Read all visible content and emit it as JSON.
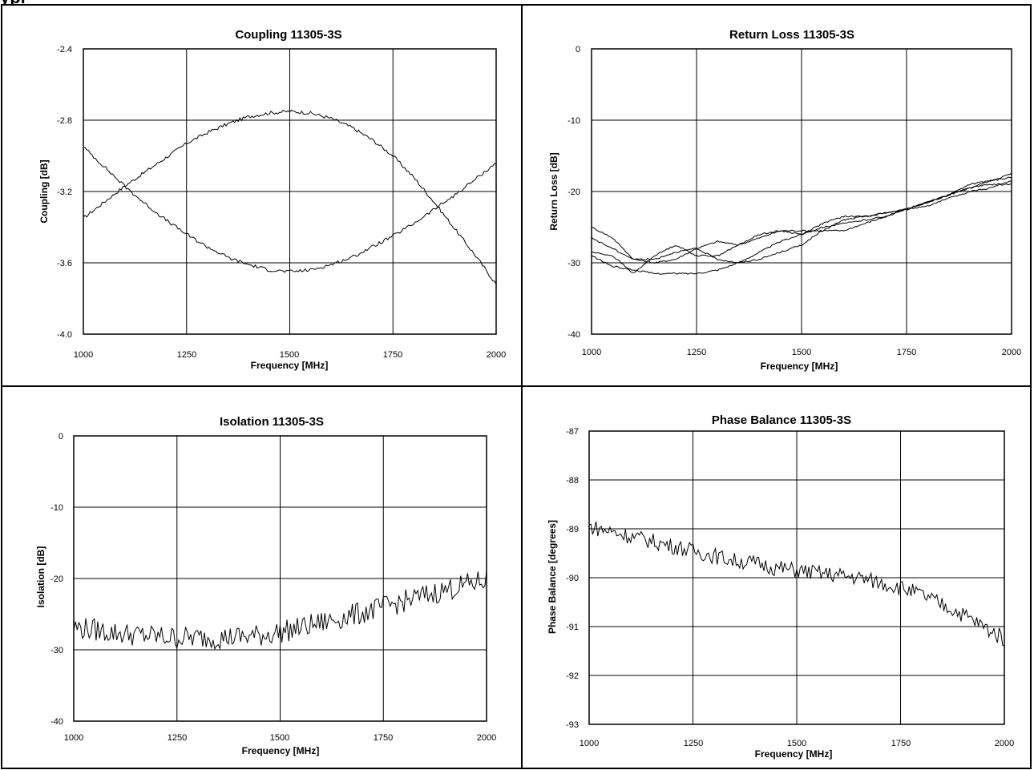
{
  "page": {
    "fragment_text": "ypi"
  },
  "charts": [
    {
      "title": "Coupling 11305-3S",
      "xlabel": "Frequency [MHz]",
      "ylabel": "Coupling [dB]",
      "xticks": [
        "1000",
        "1250",
        "1500",
        "1750",
        "2000"
      ],
      "yticks": [
        "-2.4",
        "-2.8",
        "-3.2",
        "-3.6",
        "-4.0"
      ]
    },
    {
      "title": "Return Loss 11305-3S",
      "xlabel": "Frequency [MHz]",
      "ylabel": "Return Loss [dB]",
      "xticks": [
        "1000",
        "1250",
        "1500",
        "1750",
        "2000"
      ],
      "yticks": [
        "0",
        "-10",
        "-20",
        "-30",
        "-40"
      ]
    },
    {
      "title": "Isolation 11305-3S",
      "xlabel": "Frequency [MHz]",
      "ylabel": "Isolation [dB]",
      "xticks": [
        "1000",
        "1250",
        "1500",
        "1750",
        "2000"
      ],
      "yticks": [
        "0",
        "-10",
        "-20",
        "-30",
        "-40"
      ]
    },
    {
      "title": "Phase Balance 11305-3S",
      "xlabel": "Frequency [MHz]",
      "ylabel": "Phase  Balance [degrees]",
      "xticks": [
        "1000",
        "1250",
        "1500",
        "1750",
        "2000"
      ],
      "yticks": [
        "-87",
        "-88",
        "-89",
        "-90",
        "-91",
        "-92",
        "-93"
      ]
    }
  ],
  "chart_data": [
    {
      "type": "line",
      "title": "Coupling 11305-3S",
      "xlabel": "Frequency [MHz]",
      "ylabel": "Coupling [dB]",
      "xlim": [
        1000,
        2000
      ],
      "ylim": [
        -4.0,
        -2.4
      ],
      "grid": true,
      "series": [
        {
          "x": [
            1000,
            1050,
            1100,
            1150,
            1200,
            1250,
            1300,
            1350,
            1400,
            1450,
            1500,
            1550,
            1600,
            1650,
            1700,
            1750,
            1800,
            1850,
            1900,
            1950,
            2000
          ],
          "y": [
            -3.35,
            -3.26,
            -3.17,
            -3.09,
            -3.01,
            -2.93,
            -2.87,
            -2.82,
            -2.78,
            -2.76,
            -2.75,
            -2.76,
            -2.79,
            -2.84,
            -2.91,
            -3.0,
            -3.12,
            -3.26,
            -3.41,
            -3.56,
            -3.72
          ]
        },
        {
          "x": [
            1000,
            1050,
            1100,
            1150,
            1200,
            1250,
            1300,
            1350,
            1400,
            1450,
            1500,
            1550,
            1600,
            1650,
            1700,
            1750,
            1800,
            1850,
            1900,
            1950,
            2000
          ],
          "y": [
            -2.95,
            -3.06,
            -3.17,
            -3.27,
            -3.36,
            -3.44,
            -3.51,
            -3.57,
            -3.61,
            -3.64,
            -3.65,
            -3.64,
            -3.61,
            -3.57,
            -3.51,
            -3.45,
            -3.38,
            -3.3,
            -3.22,
            -3.13,
            -3.04
          ]
        }
      ]
    },
    {
      "type": "line",
      "title": "Return Loss 11305-3S",
      "xlabel": "Frequency [MHz]",
      "ylabel": "Return Loss [dB]",
      "xlim": [
        1000,
        2000
      ],
      "ylim": [
        -40,
        0
      ],
      "grid": true,
      "series": [
        {
          "x": [
            1000,
            1050,
            1100,
            1150,
            1200,
            1250,
            1300,
            1350,
            1400,
            1450,
            1500,
            1550,
            1600,
            1650,
            1700,
            1750,
            1800,
            1850,
            1900,
            1950,
            2000
          ],
          "y": [
            -25,
            -26.5,
            -29.5,
            -30,
            -29.5,
            -28,
            -27,
            -27.5,
            -26.5,
            -25.5,
            -25.5,
            -25.5,
            -25.5,
            -24.5,
            -23.5,
            -22.5,
            -21.5,
            -20.5,
            -19.5,
            -18.5,
            -17.5
          ]
        },
        {
          "x": [
            1000,
            1050,
            1100,
            1150,
            1200,
            1250,
            1300,
            1350,
            1400,
            1450,
            1500,
            1550,
            1600,
            1650,
            1700,
            1750,
            1800,
            1850,
            1900,
            1950,
            2000
          ],
          "y": [
            -28.5,
            -29,
            -31.5,
            -29,
            -27.5,
            -29,
            -29,
            -27.5,
            -26,
            -25.5,
            -26,
            -24.5,
            -23.5,
            -23.5,
            -23,
            -22.5,
            -21.5,
            -20.5,
            -19,
            -18.5,
            -18
          ]
        },
        {
          "x": [
            1000,
            1050,
            1100,
            1150,
            1200,
            1250,
            1300,
            1350,
            1400,
            1450,
            1500,
            1550,
            1600,
            1650,
            1700,
            1750,
            1800,
            1850,
            1900,
            1950,
            2000
          ],
          "y": [
            -29,
            -30.5,
            -31,
            -31.5,
            -31.5,
            -31.5,
            -31,
            -30,
            -28.5,
            -27,
            -26,
            -25,
            -24.5,
            -24,
            -23.5,
            -22.5,
            -21.5,
            -20.5,
            -19.5,
            -19,
            -19
          ]
        },
        {
          "x": [
            1000,
            1050,
            1100,
            1150,
            1200,
            1250,
            1300,
            1350,
            1400,
            1450,
            1500,
            1550,
            1600,
            1650,
            1700,
            1750,
            1800,
            1850,
            1900,
            1950,
            2000
          ],
          "y": [
            -26.5,
            -28,
            -29.5,
            -29.5,
            -28.5,
            -28,
            -29.5,
            -30,
            -29.5,
            -28.5,
            -27.5,
            -25.5,
            -24,
            -23.5,
            -23,
            -22.5,
            -22,
            -21,
            -20,
            -19.5,
            -18.5
          ]
        }
      ]
    },
    {
      "type": "line",
      "title": "Isolation 11305-3S",
      "xlabel": "Frequency [MHz]",
      "ylabel": "Isolation [dB]",
      "xlim": [
        1000,
        2000
      ],
      "ylim": [
        -40,
        0
      ],
      "grid": true,
      "series": [
        {
          "x": [
            1000,
            1050,
            1100,
            1150,
            1200,
            1250,
            1300,
            1350,
            1400,
            1450,
            1500,
            1550,
            1600,
            1650,
            1700,
            1750,
            1800,
            1850,
            1900,
            1950,
            2000
          ],
          "y": [
            -26.8,
            -27.2,
            -27.6,
            -27.9,
            -28.1,
            -28.3,
            -28.3,
            -28.3,
            -28.2,
            -28.0,
            -27.5,
            -26.9,
            -26.2,
            -25.5,
            -24.8,
            -24.0,
            -23.2,
            -22.4,
            -21.6,
            -20.9,
            -20.2
          ]
        }
      ]
    },
    {
      "type": "line",
      "title": "Phase Balance 11305-3S",
      "xlabel": "Frequency [MHz]",
      "ylabel": "Phase  Balance [degrees]",
      "xlim": [
        1000,
        2000
      ],
      "ylim": [
        -93,
        -87
      ],
      "grid": true,
      "series": [
        {
          "x": [
            1000,
            1050,
            1100,
            1150,
            1200,
            1250,
            1300,
            1350,
            1400,
            1450,
            1500,
            1550,
            1600,
            1650,
            1700,
            1750,
            1800,
            1850,
            1900,
            1950,
            2000
          ],
          "y": [
            -88.95,
            -89.05,
            -89.15,
            -89.25,
            -89.35,
            -89.45,
            -89.55,
            -89.65,
            -89.7,
            -89.8,
            -89.85,
            -89.9,
            -89.95,
            -90.0,
            -90.1,
            -90.2,
            -90.35,
            -90.55,
            -90.75,
            -91.0,
            -91.25
          ]
        }
      ]
    }
  ]
}
